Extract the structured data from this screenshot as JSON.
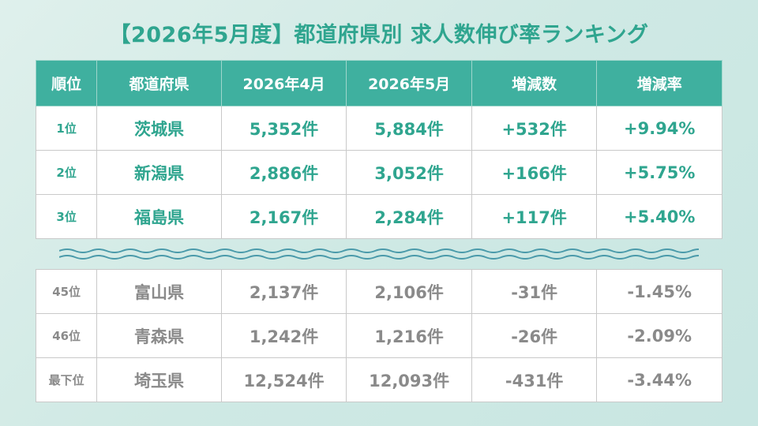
{
  "title": "【2026年5月度】都道府県別 求人数伸び率ランキング",
  "headers": [
    "順位",
    "都道府県",
    "2026年4月",
    "2026年5月",
    "増減数",
    "増減率"
  ],
  "top_rows": [
    {
      "rank": "1位",
      "prefecture": "茨城県",
      "apr": "5,352件",
      "may": "5,884件",
      "change": "+532件",
      "rate": "+9.94%"
    },
    {
      "rank": "2位",
      "prefecture": "新潟県",
      "apr": "2,886件",
      "may": "3,052件",
      "change": "+166件",
      "rate": "+5.75%"
    },
    {
      "rank": "3位",
      "prefecture": "福島県",
      "apr": "2,167件",
      "may": "2,284件",
      "change": "+117件",
      "rate": "+5.40%"
    }
  ],
  "bottom_rows": [
    {
      "rank": "45位",
      "prefecture": "富山県",
      "apr": "2,137件",
      "may": "2,106件",
      "change": "-31件",
      "rate": "-1.45%"
    },
    {
      "rank": "46位",
      "prefecture": "青森県",
      "apr": "1,242件",
      "may": "1,216件",
      "change": "-26件",
      "rate": "-2.09%"
    },
    {
      "rank": "最下位",
      "prefecture": "埼玉県",
      "apr": "12,524件",
      "may": "12,093件",
      "change": "-431件",
      "rate": "-3.44%"
    }
  ],
  "colors": {
    "accent": "#3fb09f",
    "positive_text": "#2fa58f",
    "negative_text": "#8a8a8a",
    "background": "#cfe9e4"
  }
}
